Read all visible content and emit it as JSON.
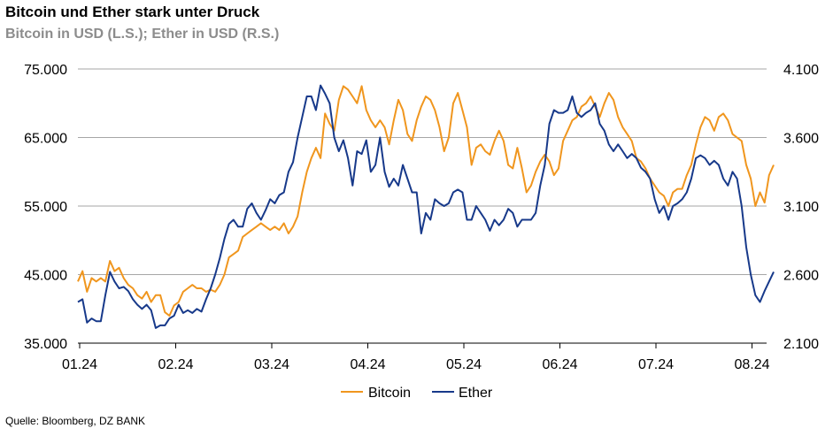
{
  "header": {
    "title": "Bitcoin und Ether stark unter Druck",
    "subtitle": "Bitcoin in USD (L.S.); Ether in USD (R.S.)"
  },
  "footer": {
    "source": "Quelle: Bloomberg, DZ BANK"
  },
  "chart_data": {
    "type": "line",
    "left_axis": {
      "min": 35000,
      "max": 75000,
      "ticks": [
        "75.000",
        "65.000",
        "55.000",
        "45.000",
        "35.000"
      ],
      "tick_values": [
        75000,
        65000,
        55000,
        45000,
        35000
      ]
    },
    "right_axis": {
      "min": 2100,
      "max": 4100,
      "ticks": [
        "4.100",
        "3.600",
        "3.100",
        "2.600",
        "2.100"
      ],
      "tick_values": [
        4100,
        3600,
        3100,
        2600,
        2100
      ]
    },
    "x_ticks": [
      "01.24",
      "02.24",
      "03.24",
      "04.24",
      "05.24",
      "06.24",
      "07.24",
      "08.24"
    ],
    "grid": "horizontal",
    "legend_position": "bottom",
    "series": [
      {
        "name": "Bitcoin",
        "axis": "left",
        "color": "#F0961E",
        "values": [
          44000,
          45500,
          42500,
          44500,
          44000,
          44500,
          44000,
          47000,
          45500,
          46000,
          44500,
          43500,
          43000,
          42000,
          41500,
          42500,
          41000,
          42000,
          42000,
          39500,
          39000,
          40500,
          41000,
          42500,
          43000,
          43500,
          43000,
          43000,
          42500,
          42800,
          42500,
          43500,
          45000,
          47500,
          48000,
          48500,
          50500,
          51000,
          51500,
          52000,
          52500,
          52000,
          51500,
          52000,
          51500,
          52500,
          51000,
          52000,
          53500,
          57000,
          60000,
          62000,
          63500,
          62000,
          68500,
          67000,
          66000,
          70500,
          72500,
          72000,
          71000,
          70000,
          72500,
          69000,
          67500,
          66500,
          67500,
          66500,
          64000,
          67500,
          70500,
          69000,
          65500,
          64500,
          67500,
          69500,
          71000,
          70500,
          69000,
          66500,
          63000,
          65000,
          70000,
          71500,
          69000,
          66500,
          61000,
          63500,
          64000,
          63000,
          62500,
          64500,
          66000,
          64500,
          61000,
          60500,
          63500,
          60500,
          57000,
          58000,
          60000,
          61500,
          62500,
          61500,
          59500,
          60500,
          64500,
          66000,
          67500,
          68000,
          69500,
          70000,
          71000,
          69500,
          68000,
          70000,
          71500,
          70500,
          68000,
          66500,
          65500,
          64500,
          62000,
          61500,
          60500,
          59000,
          58000,
          57000,
          56500,
          55000,
          57000,
          57500,
          57500,
          59500,
          61000,
          64000,
          66500,
          68000,
          67500,
          66000,
          68000,
          68500,
          67500,
          65500,
          65000,
          64500,
          61000,
          59000,
          55000,
          57000,
          55500,
          59500,
          61000
        ]
      },
      {
        "name": "Ether",
        "axis": "right",
        "color": "#17398A",
        "values": [
          2400,
          2420,
          2250,
          2280,
          2260,
          2260,
          2450,
          2620,
          2550,
          2500,
          2510,
          2480,
          2420,
          2380,
          2350,
          2380,
          2340,
          2210,
          2230,
          2230,
          2280,
          2300,
          2380,
          2320,
          2340,
          2320,
          2350,
          2330,
          2420,
          2500,
          2600,
          2720,
          2860,
          2970,
          3000,
          2950,
          2950,
          3080,
          3120,
          3050,
          3000,
          3070,
          3150,
          3120,
          3180,
          3200,
          3350,
          3420,
          3600,
          3750,
          3900,
          3900,
          3800,
          3980,
          3920,
          3850,
          3600,
          3500,
          3580,
          3450,
          3250,
          3500,
          3480,
          3580,
          3350,
          3400,
          3600,
          3350,
          3240,
          3300,
          3250,
          3400,
          3300,
          3200,
          3200,
          2900,
          3050,
          3000,
          3150,
          3120,
          3100,
          3120,
          3200,
          3220,
          3200,
          3000,
          3000,
          3100,
          3050,
          3000,
          2920,
          3000,
          2960,
          3000,
          3080,
          3050,
          2950,
          3000,
          3000,
          3000,
          3050,
          3250,
          3400,
          3700,
          3800,
          3780,
          3780,
          3800,
          3900,
          3780,
          3750,
          3780,
          3800,
          3850,
          3700,
          3650,
          3550,
          3500,
          3550,
          3500,
          3450,
          3480,
          3450,
          3380,
          3350,
          3300,
          3150,
          3050,
          3100,
          3000,
          3100,
          3120,
          3150,
          3200,
          3300,
          3450,
          3470,
          3450,
          3400,
          3430,
          3400,
          3300,
          3250,
          3350,
          3300,
          3100,
          2800,
          2600,
          2450,
          2400,
          2480,
          2550,
          2620
        ]
      }
    ]
  }
}
